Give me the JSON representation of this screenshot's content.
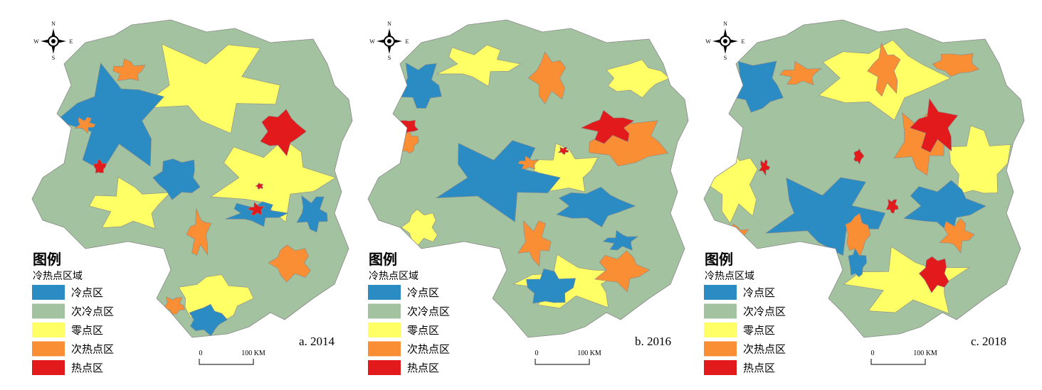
{
  "panels": [
    {
      "label": "a. 2014"
    },
    {
      "label": "b. 2016"
    },
    {
      "label": "c. 2018"
    }
  ],
  "legend": {
    "title": "图例",
    "subtitle": "冷热点区域",
    "items": [
      {
        "label": "冷点区",
        "color": "#2b8cc4"
      },
      {
        "label": "次冷点区",
        "color": "#a3c29f"
      },
      {
        "label": "零点区",
        "color": "#ffff66"
      },
      {
        "label": "次热点区",
        "color": "#f98e34"
      },
      {
        "label": "热点区",
        "color": "#e31a1c"
      }
    ]
  },
  "compass": {
    "n": "N",
    "s": "S",
    "w": "W",
    "e": "E"
  },
  "scale": {
    "start": "0",
    "end": "100 KM"
  }
}
